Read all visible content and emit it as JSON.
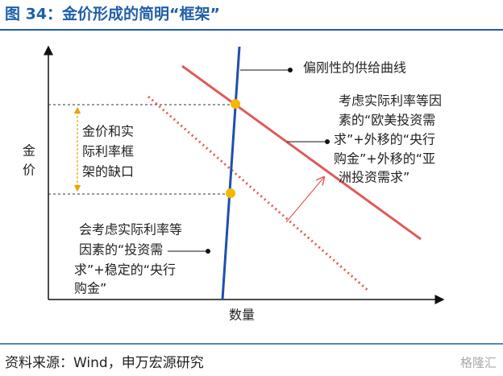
{
  "header": {
    "title": "图 34：金价形成的简明“框架”"
  },
  "axes": {
    "y_label": [
      "金",
      "价"
    ],
    "x_label": "数量"
  },
  "annotations": {
    "gap_label": [
      "金价和实",
      "际利率框",
      "架的缺口"
    ],
    "supply_label": "偏刚性的供给曲线",
    "right_label": [
      "考虑实际利率等因",
      "素的“欧美投资需",
      "求”+外移的“央行",
      "购金”+外移的“亚",
      "洲投资需求”"
    ],
    "left_label": [
      "会考虑实际利率等",
      "因素的“投资需",
      "求”+稳定的“央行",
      "购金”"
    ]
  },
  "footer": {
    "source": "资料来源：Wind，申万宏源研究",
    "watermark": "格隆汇"
  }
}
